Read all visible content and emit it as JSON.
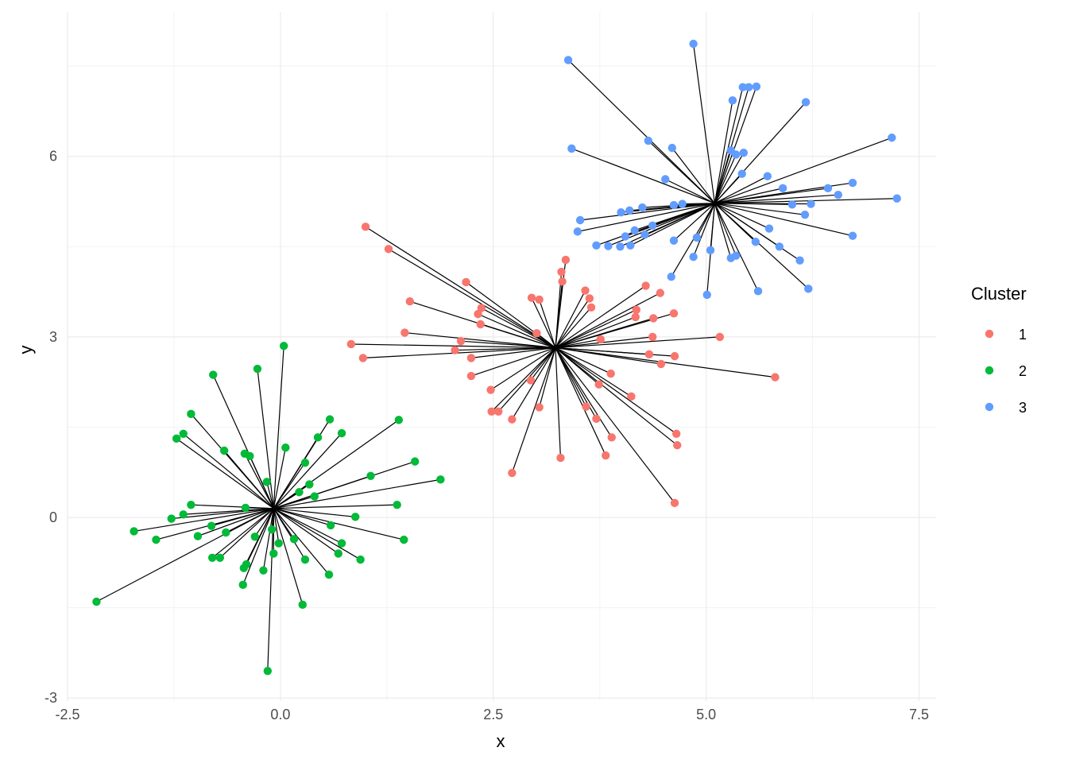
{
  "chart_data": {
    "type": "scatter",
    "xlabel": "x",
    "ylabel": "y",
    "xlim": [
      -2.5,
      7.7
    ],
    "ylim": [
      -3.05,
      8.4
    ],
    "x_ticks": [
      -2.5,
      0.0,
      2.5,
      5.0,
      7.5
    ],
    "x_tick_labels": [
      "-2.5",
      "0.0",
      "2.5",
      "5.0",
      "7.5"
    ],
    "y_ticks": [
      -3,
      0,
      3,
      6
    ],
    "y_tick_labels": [
      "-3",
      "0",
      "3",
      "6"
    ],
    "grid": true,
    "legend": {
      "title": "Cluster",
      "position": "right",
      "entries": [
        {
          "label": "1",
          "color": "#F8766D"
        },
        {
          "label": "2",
          "color": "#00BA38"
        },
        {
          "label": "3",
          "color": "#619CFF"
        }
      ]
    },
    "segments_to_centroid": true,
    "series": [
      {
        "cluster": "1",
        "color": "#F8766D",
        "centroid": [
          3.23,
          2.82
        ],
        "points": [
          [
            1.0,
            4.83
          ],
          [
            1.27,
            4.46
          ],
          [
            1.52,
            3.59
          ],
          [
            1.46,
            3.07
          ],
          [
            0.83,
            2.88
          ],
          [
            0.97,
            2.65
          ],
          [
            2.18,
            3.91
          ],
          [
            2.32,
            3.38
          ],
          [
            2.36,
            3.48
          ],
          [
            2.35,
            3.21
          ],
          [
            2.12,
            2.93
          ],
          [
            2.05,
            2.78
          ],
          [
            2.24,
            2.65
          ],
          [
            2.24,
            2.35
          ],
          [
            2.47,
            2.12
          ],
          [
            2.48,
            1.76
          ],
          [
            2.56,
            1.76
          ],
          [
            2.72,
            1.63
          ],
          [
            2.72,
            0.74
          ],
          [
            2.95,
            3.65
          ],
          [
            3.04,
            3.62
          ],
          [
            3.01,
            3.06
          ],
          [
            2.94,
            2.28
          ],
          [
            3.04,
            1.83
          ],
          [
            3.3,
            4.08
          ],
          [
            3.31,
            3.92
          ],
          [
            3.35,
            4.28
          ],
          [
            3.29,
            0.99
          ],
          [
            3.58,
            3.77
          ],
          [
            3.63,
            3.64
          ],
          [
            3.65,
            3.49
          ],
          [
            3.76,
            2.96
          ],
          [
            3.74,
            2.21
          ],
          [
            3.59,
            1.84
          ],
          [
            3.71,
            1.64
          ],
          [
            3.82,
            1.03
          ],
          [
            3.89,
            1.33
          ],
          [
            3.88,
            2.39
          ],
          [
            4.29,
            3.85
          ],
          [
            4.46,
            3.73
          ],
          [
            4.18,
            3.45
          ],
          [
            4.17,
            3.33
          ],
          [
            4.38,
            3.31
          ],
          [
            4.62,
            3.39
          ],
          [
            4.37,
            3.0
          ],
          [
            4.33,
            2.71
          ],
          [
            4.47,
            2.55
          ],
          [
            4.63,
            2.68
          ],
          [
            5.16,
            3.0
          ],
          [
            5.81,
            2.33
          ],
          [
            4.12,
            2.01
          ],
          [
            4.65,
            1.39
          ],
          [
            4.66,
            1.2
          ],
          [
            4.63,
            0.24
          ]
        ]
      },
      {
        "cluster": "2",
        "color": "#00BA38",
        "centroid": [
          -0.08,
          0.15
        ],
        "points": [
          [
            0.04,
            2.85
          ],
          [
            -0.27,
            2.47
          ],
          [
            -0.79,
            2.37
          ],
          [
            -1.05,
            1.72
          ],
          [
            -1.14,
            1.39
          ],
          [
            -1.22,
            1.31
          ],
          [
            -0.66,
            1.11
          ],
          [
            -0.42,
            1.06
          ],
          [
            -0.36,
            1.02
          ],
          [
            0.06,
            1.16
          ],
          [
            0.29,
            0.91
          ],
          [
            0.44,
            1.33
          ],
          [
            0.58,
            1.63
          ],
          [
            0.72,
            1.4
          ],
          [
            1.39,
            1.62
          ],
          [
            1.58,
            0.93
          ],
          [
            1.88,
            0.63
          ],
          [
            1.06,
            0.69
          ],
          [
            0.34,
            0.55
          ],
          [
            0.22,
            0.42
          ],
          [
            0.4,
            0.35
          ],
          [
            -0.16,
            0.59
          ],
          [
            -1.05,
            0.21
          ],
          [
            -1.14,
            0.05
          ],
          [
            -1.28,
            -0.02
          ],
          [
            -1.72,
            -0.23
          ],
          [
            -1.46,
            -0.37
          ],
          [
            -0.97,
            -0.31
          ],
          [
            -0.81,
            -0.14
          ],
          [
            -0.64,
            -0.25
          ],
          [
            -0.41,
            0.16
          ],
          [
            -0.3,
            -0.32
          ],
          [
            -0.1,
            -0.2
          ],
          [
            -0.02,
            -0.43
          ],
          [
            -0.08,
            -0.6
          ],
          [
            -0.2,
            -0.88
          ],
          [
            -0.4,
            -0.78
          ],
          [
            -0.43,
            -0.84
          ],
          [
            -0.44,
            -1.12
          ],
          [
            -0.8,
            -0.67
          ],
          [
            -0.71,
            -0.67
          ],
          [
            -2.16,
            -1.4
          ],
          [
            0.16,
            -0.36
          ],
          [
            0.29,
            -0.7
          ],
          [
            0.26,
            -1.45
          ],
          [
            -0.15,
            -2.55
          ],
          [
            0.57,
            -0.95
          ],
          [
            0.59,
            -0.13
          ],
          [
            0.68,
            -0.6
          ],
          [
            0.72,
            -0.43
          ],
          [
            0.88,
            0.01
          ],
          [
            0.94,
            -0.7
          ],
          [
            1.37,
            0.21
          ],
          [
            1.45,
            -0.37
          ]
        ]
      },
      {
        "cluster": "3",
        "color": "#619CFF",
        "centroid": [
          5.1,
          5.22
        ],
        "points": [
          [
            3.38,
            7.6
          ],
          [
            4.85,
            7.87
          ],
          [
            5.43,
            7.15
          ],
          [
            5.5,
            7.15
          ],
          [
            5.59,
            7.16
          ],
          [
            5.31,
            6.93
          ],
          [
            6.17,
            6.9
          ],
          [
            7.18,
            6.31
          ],
          [
            3.42,
            6.13
          ],
          [
            4.32,
            6.26
          ],
          [
            4.6,
            6.14
          ],
          [
            5.29,
            6.1
          ],
          [
            5.35,
            6.03
          ],
          [
            5.44,
            6.06
          ],
          [
            4.52,
            5.62
          ],
          [
            5.42,
            5.71
          ],
          [
            5.72,
            5.67
          ],
          [
            5.9,
            5.47
          ],
          [
            6.43,
            5.47
          ],
          [
            6.55,
            5.36
          ],
          [
            6.72,
            5.56
          ],
          [
            7.24,
            5.3
          ],
          [
            6.01,
            5.2
          ],
          [
            6.23,
            5.21
          ],
          [
            6.16,
            5.03
          ],
          [
            4.62,
            5.19
          ],
          [
            4.72,
            5.21
          ],
          [
            4.25,
            5.15
          ],
          [
            4.1,
            5.1
          ],
          [
            4.0,
            5.07
          ],
          [
            3.52,
            4.94
          ],
          [
            3.49,
            4.75
          ],
          [
            3.71,
            4.52
          ],
          [
            3.85,
            4.51
          ],
          [
            3.99,
            4.5
          ],
          [
            4.11,
            4.52
          ],
          [
            4.16,
            4.77
          ],
          [
            4.28,
            4.7
          ],
          [
            4.05,
            4.67
          ],
          [
            4.37,
            4.85
          ],
          [
            4.62,
            4.6
          ],
          [
            4.89,
            4.65
          ],
          [
            5.05,
            4.44
          ],
          [
            4.85,
            4.33
          ],
          [
            4.59,
            4.0
          ],
          [
            5.01,
            3.7
          ],
          [
            5.29,
            4.31
          ],
          [
            5.35,
            4.35
          ],
          [
            5.61,
            3.76
          ],
          [
            5.58,
            4.58
          ],
          [
            5.74,
            4.8
          ],
          [
            5.86,
            4.5
          ],
          [
            6.1,
            4.27
          ],
          [
            6.2,
            3.8
          ],
          [
            6.72,
            4.68
          ]
        ]
      }
    ]
  }
}
